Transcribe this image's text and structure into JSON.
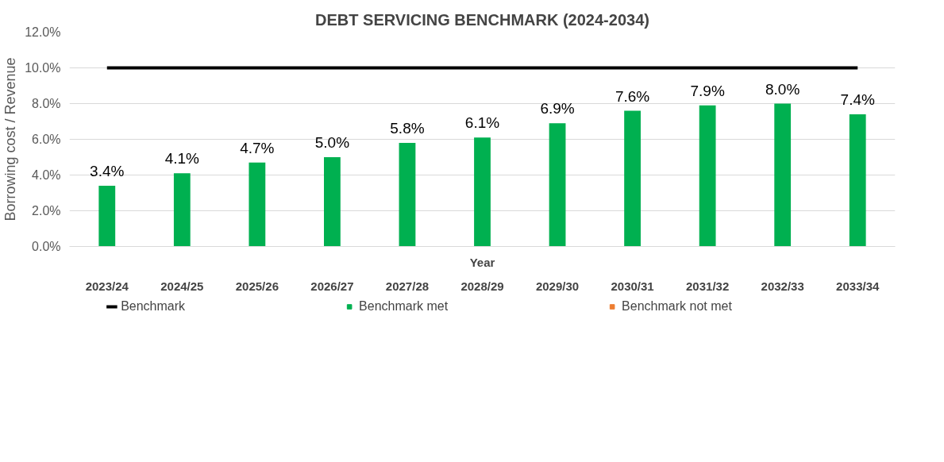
{
  "chart_data": {
    "type": "bar",
    "title": "DEBT SERVICING BENCHMARK (2024-2034)",
    "xlabel": "Year",
    "ylabel": "Borrowing cost / Revenue",
    "categories": [
      "2023/24",
      "2024/25",
      "2025/26",
      "2026/27",
      "2027/28",
      "2028/29",
      "2029/30",
      "2030/31",
      "2031/32",
      "2032/33",
      "2033/34"
    ],
    "series": [
      {
        "name": "Benchmark",
        "type": "line",
        "color": "#000000",
        "values": [
          10,
          10,
          10,
          10,
          10,
          10,
          10,
          10,
          10,
          10,
          10
        ]
      },
      {
        "name": "Benchmark met",
        "color": "#00b050",
        "values": [
          3.4,
          4.1,
          4.7,
          5.0,
          5.8,
          6.1,
          6.9,
          7.6,
          7.9,
          8.0,
          7.4
        ],
        "value_labels": [
          "3.4%",
          "4.1%",
          "4.7%",
          "5.0%",
          "5.8%",
          "6.1%",
          "6.9%",
          "7.6%",
          "7.9%",
          "8.0%",
          "7.4%"
        ]
      },
      {
        "name": "Benchmark not met",
        "color": "#ed7d31",
        "values": [
          null,
          null,
          null,
          null,
          null,
          null,
          null,
          null,
          null,
          null,
          null
        ]
      }
    ],
    "ylim": [
      0,
      12
    ],
    "yticks": [
      {
        "value": 0,
        "label": "0.0%"
      },
      {
        "value": 2,
        "label": "2.0%"
      },
      {
        "value": 4,
        "label": "4.0%"
      },
      {
        "value": 6,
        "label": "6.0%"
      },
      {
        "value": 8,
        "label": "8.0%"
      },
      {
        "value": 10,
        "label": "10.0%"
      },
      {
        "value": 12,
        "label": "12.0%"
      }
    ],
    "grid": "y",
    "legend": "bottom"
  }
}
